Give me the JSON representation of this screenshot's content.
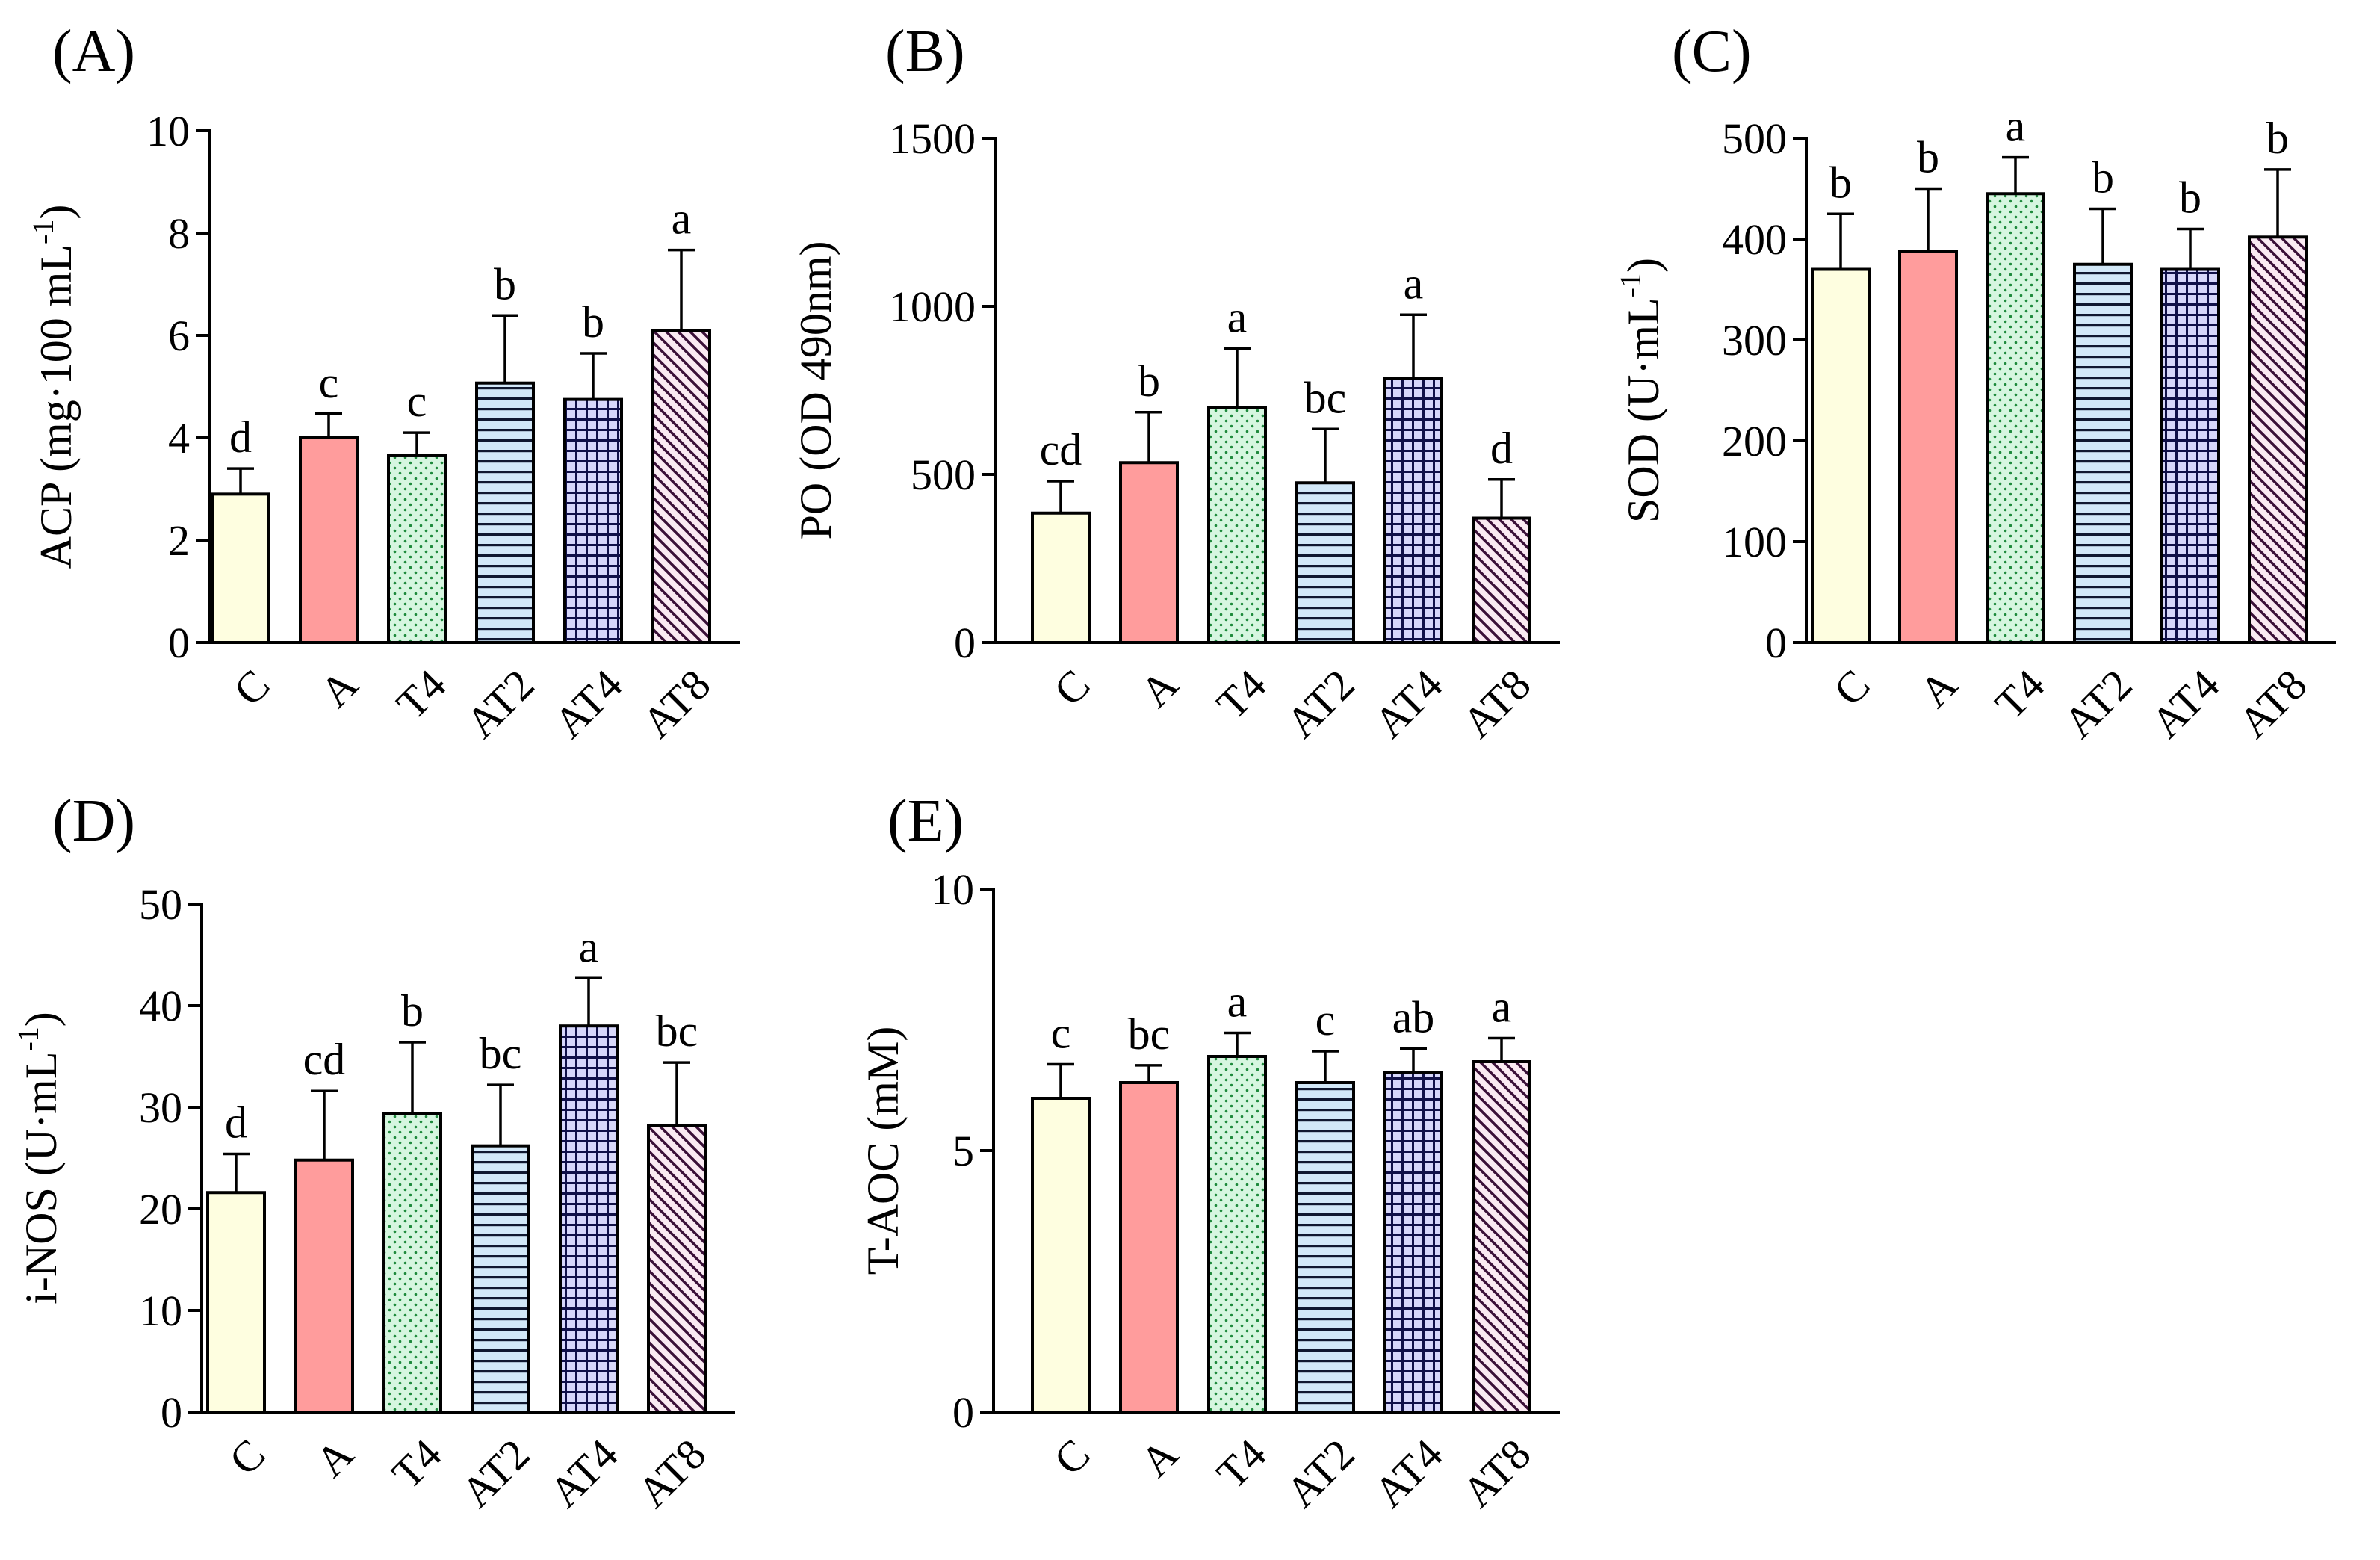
{
  "figure": {
    "categories": [
      "C",
      "A",
      "T4",
      "AT2",
      "AT4",
      "AT8"
    ],
    "bar_colors": [
      "#FEFEE0",
      "#FF9C9C",
      "#D6F6E0",
      "#D2E8F8",
      "#D6D6FA",
      "#FAEAF2"
    ],
    "pattern_colors": [
      "none",
      "none",
      "#1E8A3C",
      "#101830",
      "#101048",
      "#3A1038"
    ],
    "pattern_types": [
      "none",
      "none",
      "dots",
      "hlines",
      "grid",
      "diagonal"
    ]
  },
  "chart_data": [
    {
      "type": "bar",
      "panel": "(A)",
      "ylabel_main": "ACP (mg·100 mL",
      "ylabel_sup": "-1",
      "ylabel_end": ")",
      "categories": [
        "C",
        "A",
        "T4",
        "AT2",
        "AT4",
        "AT8"
      ],
      "values": [
        2.9,
        4.0,
        3.65,
        5.07,
        4.75,
        6.1
      ],
      "errors": [
        0.5,
        0.47,
        0.45,
        1.32,
        0.9,
        1.57
      ],
      "significance": [
        "d",
        "c",
        "c",
        "b",
        "b",
        "a"
      ],
      "ylim": [
        0,
        10
      ],
      "yticks": [
        0,
        2,
        4,
        6,
        8,
        10
      ],
      "ytick_labels": [
        "0",
        "2",
        "4",
        "6",
        "8",
        "10"
      ]
    },
    {
      "type": "bar",
      "panel": "(B)",
      "ylabel_main": "PO (OD 490nm)",
      "ylabel_sup": "",
      "ylabel_end": "",
      "categories": [
        "C",
        "A",
        "T4",
        "AT2",
        "AT4",
        "AT8"
      ],
      "values": [
        385,
        535,
        700,
        475,
        785,
        370
      ],
      "errors": [
        95,
        150,
        175,
        160,
        190,
        115
      ],
      "significance": [
        "cd",
        "b",
        "a",
        "bc",
        "a",
        "d"
      ],
      "ylim": [
        0,
        1500
      ],
      "yticks": [
        0,
        500,
        1000,
        1500
      ],
      "ytick_labels": [
        "0",
        "500",
        "1000",
        "1500"
      ]
    },
    {
      "type": "bar",
      "panel": "(C)",
      "ylabel_main": "SOD (U·mL",
      "ylabel_sup": "-1",
      "ylabel_end": ")",
      "categories": [
        "C",
        "A",
        "T4",
        "AT2",
        "AT4",
        "AT8"
      ],
      "values": [
        370,
        388,
        445,
        375,
        370,
        402
      ],
      "errors": [
        55,
        62,
        36,
        55,
        40,
        67
      ],
      "significance": [
        "b",
        "b",
        "a",
        "b",
        "b",
        "b"
      ],
      "ylim": [
        0,
        500
      ],
      "yticks": [
        0,
        100,
        200,
        300,
        400,
        500
      ],
      "ytick_labels": [
        "0",
        "100",
        "200",
        "300",
        "400",
        "500"
      ]
    },
    {
      "type": "bar",
      "panel": "(D)",
      "ylabel_main": "i-NOS (U·mL",
      "ylabel_sup": "-1",
      "ylabel_end": ")",
      "categories": [
        "C",
        "A",
        "T4",
        "AT2",
        "AT4",
        "AT8"
      ],
      "values": [
        21.6,
        24.8,
        29.4,
        26.2,
        38.0,
        28.2
      ],
      "errors": [
        3.8,
        6.8,
        7.0,
        6.0,
        4.7,
        6.2
      ],
      "significance": [
        "d",
        "cd",
        "b",
        "bc",
        "a",
        "bc"
      ],
      "ylim": [
        0,
        50
      ],
      "yticks": [
        0,
        10,
        20,
        30,
        40,
        50
      ],
      "ytick_labels": [
        "0",
        "10",
        "20",
        "30",
        "40",
        "50"
      ]
    },
    {
      "type": "bar",
      "panel": "(E)",
      "ylabel_main": "T-AOC  (mM)",
      "ylabel_sup": "",
      "ylabel_end": "",
      "categories": [
        "C",
        "A",
        "T4",
        "AT2",
        "AT4",
        "AT8"
      ],
      "values": [
        6.0,
        6.3,
        6.8,
        6.3,
        6.5,
        6.7
      ],
      "errors": [
        0.65,
        0.33,
        0.45,
        0.6,
        0.45,
        0.45
      ],
      "significance": [
        "c",
        "bc",
        "a",
        "c",
        "ab",
        "a"
      ],
      "ylim": [
        0,
        10
      ],
      "yticks": [
        0,
        5,
        10
      ],
      "ytick_labels": [
        "0",
        "5",
        "10"
      ]
    }
  ]
}
